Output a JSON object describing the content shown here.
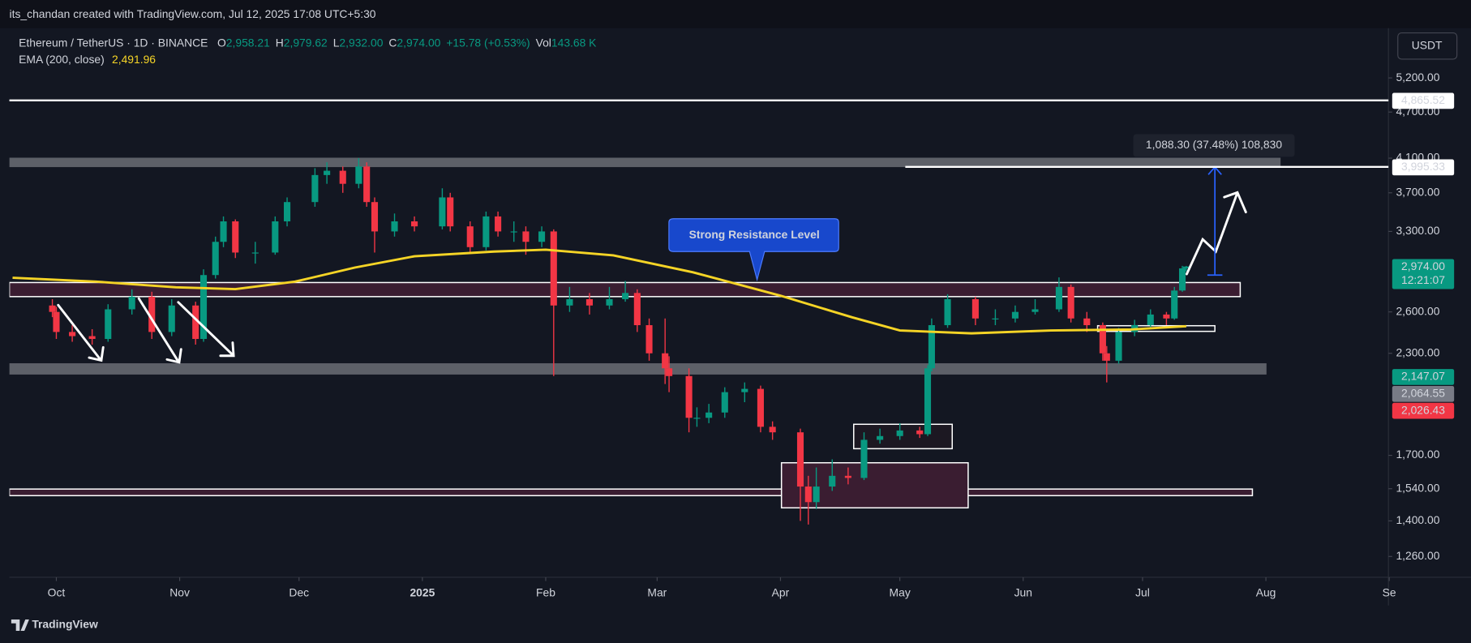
{
  "header": {
    "credit": "its_chandan created with TradingView.com, Jul 12, 2025 17:08 UTC+5:30",
    "symbol": "Ethereum / TetherUS · 1D · BINANCE",
    "ohlc": [
      {
        "key": "O",
        "value": "2,958.21"
      },
      {
        "key": "H",
        "value": "2,979.62"
      },
      {
        "key": "L",
        "value": "2,932.00"
      },
      {
        "key": "C",
        "value": "2,974.00"
      }
    ],
    "change": "+15.78 (+0.53%)",
    "volume_key": "Vol",
    "volume": "143.68 K",
    "ema_label": "EMA (200, close)",
    "ema_value": "2,491.96",
    "currency": "USDT"
  },
  "annotations": {
    "callout": "Strong Resistance Level",
    "measure": "1,088.30 (37.48%) 108,830"
  },
  "footer": {
    "brand": "TradingView"
  },
  "chart_data": {
    "type": "candlestick",
    "log_scale": true,
    "grid": false,
    "xlim": [
      -11.8,
      334.8
    ],
    "ylim": [
      1184.6,
      6026
    ],
    "xticks": [
      {
        "value": 0,
        "label": "Oct"
      },
      {
        "value": 31,
        "label": "Nov"
      },
      {
        "value": 61,
        "label": "Dec"
      },
      {
        "value": 92,
        "label": "2025"
      },
      {
        "value": 123,
        "label": "Feb"
      },
      {
        "value": 151,
        "label": "Mar"
      },
      {
        "value": 182,
        "label": "Apr"
      },
      {
        "value": 212,
        "label": "May"
      },
      {
        "value": 243,
        "label": "Jun"
      },
      {
        "value": 273,
        "label": "Jul"
      },
      {
        "value": 304,
        "label": "Aug"
      },
      {
        "value": 335,
        "label": "Se"
      }
    ],
    "yticks": [
      {
        "value": 1260,
        "label": "1,260.00"
      },
      {
        "value": 1400,
        "label": "1,400.00"
      },
      {
        "value": 1540,
        "label": "1,540.00"
      },
      {
        "value": 1700,
        "label": "1,700.00"
      },
      {
        "value": 2300,
        "label": "2,300.00"
      },
      {
        "value": 2600,
        "label": "2,600.00"
      },
      {
        "value": 3300,
        "label": "3,300.00"
      },
      {
        "value": 3700,
        "label": "3,700.00"
      },
      {
        "value": 4100,
        "label": "4,100.00"
      },
      {
        "value": 4700,
        "label": "4,700.00"
      },
      {
        "value": 5200,
        "label": "5,200.00"
      }
    ],
    "up_color": "#089981",
    "down_color": "#f23645",
    "candles": {
      "x": [
        -1,
        0,
        4,
        9,
        13,
        19,
        24,
        29,
        35,
        37,
        40,
        42,
        45,
        50,
        55,
        58,
        65,
        68,
        72,
        76,
        78,
        80,
        85,
        90,
        97,
        99,
        104,
        108,
        111,
        115,
        118,
        122,
        125,
        129,
        134,
        139,
        143,
        146,
        149,
        153,
        154,
        159,
        161,
        164,
        168,
        173,
        177,
        180,
        187,
        189,
        191,
        195,
        199,
        203,
        207,
        212,
        217,
        219,
        220,
        224,
        231,
        236,
        241,
        246,
        252,
        255,
        259,
        263,
        264,
        267,
        271,
        275,
        279,
        281,
        283,
        284
      ],
      "open": [
        2650,
        2600,
        2450,
        2420,
        2400,
        2620,
        2720,
        2450,
        2650,
        2400,
        2900,
        3200,
        3400,
        3100,
        3100,
        3400,
        3600,
        3900,
        3950,
        3800,
        4000,
        3600,
        3300,
        3400,
        3350,
        3650,
        3350,
        3150,
        3450,
        3300,
        3300,
        3200,
        3300,
        2650,
        2700,
        2650,
        2700,
        2750,
        2500,
        2300,
        2200,
        2150,
        1900,
        1900,
        1930,
        2050,
        2070,
        1850,
        1820,
        1550,
        1480,
        1550,
        1600,
        1590,
        1780,
        1800,
        1830,
        1810,
        2200,
        2500,
        2700,
        2550,
        2550,
        2600,
        2620,
        2800,
        2550,
        2500,
        2300,
        2250,
        2450,
        2500,
        2580,
        2550,
        2770,
        2958.21
      ],
      "high": [
        2700,
        2640,
        2500,
        2470,
        2660,
        2780,
        2760,
        2700,
        2680,
        2950,
        3250,
        3450,
        3420,
        3200,
        3450,
        3650,
        3980,
        4050,
        4000,
        4100,
        4050,
        3650,
        3480,
        3450,
        3750,
        3700,
        3400,
        3500,
        3500,
        3400,
        3350,
        3350,
        3320,
        2800,
        2750,
        2800,
        2850,
        2780,
        2550,
        2550,
        2280,
        2200,
        1960,
        1980,
        2080,
        2110,
        2090,
        1880,
        1840,
        1600,
        1640,
        1680,
        1640,
        1820,
        1840,
        1870,
        1850,
        2220,
        2550,
        2740,
        2720,
        2620,
        2650,
        2700,
        2880,
        2820,
        2600,
        2520,
        2350,
        2480,
        2540,
        2620,
        2600,
        2800,
        2980,
        2979.62
      ],
      "low": [
        2560,
        2400,
        2380,
        2360,
        2380,
        2580,
        2400,
        2420,
        2360,
        2380,
        2870,
        3150,
        3050,
        3000,
        3080,
        3350,
        3550,
        3800,
        3700,
        3750,
        3550,
        3100,
        3250,
        3300,
        3320,
        3300,
        3100,
        3120,
        3250,
        3200,
        3080,
        3150,
        2150,
        2600,
        2580,
        2620,
        2680,
        2450,
        2250,
        2100,
        2050,
        1820,
        1850,
        1870,
        1900,
        1990,
        1820,
        1780,
        1400,
        1385,
        1450,
        1530,
        1560,
        1580,
        1760,
        1780,
        1790,
        1800,
        2180,
        2480,
        2500,
        2500,
        2520,
        2580,
        2600,
        2520,
        2450,
        2250,
        2110,
        2230,
        2420,
        2480,
        2500,
        2540,
        2760,
        2932
      ],
      "close": [
        2600,
        2450,
        2420,
        2400,
        2620,
        2720,
        2450,
        2650,
        2400,
        2900,
        3200,
        3400,
        3100,
        3100,
        3400,
        3600,
        3900,
        3950,
        3800,
        4000,
        3600,
        3300,
        3400,
        3350,
        3650,
        3350,
        3150,
        3450,
        3300,
        3300,
        3200,
        3300,
        2650,
        2700,
        2650,
        2700,
        2750,
        2500,
        2300,
        2200,
        2150,
        1900,
        1900,
        1930,
        2050,
        2070,
        1850,
        1820,
        1550,
        1480,
        1550,
        1600,
        1590,
        1780,
        1800,
        1830,
        1810,
        2200,
        2500,
        2700,
        2550,
        2550,
        2600,
        2620,
        2800,
        2550,
        2500,
        2300,
        2250,
        2450,
        2500,
        2580,
        2550,
        2770,
        2958.21,
        2974
      ]
    },
    "series": [
      {
        "name": "EMA (200, close)",
        "color": "#f5d426",
        "x": [
          -11,
          10,
          30,
          45,
          60,
          75,
          90,
          110,
          123,
          140,
          160,
          182,
          200,
          212,
          230,
          250,
          270,
          284
        ],
        "values": [
          2877,
          2844,
          2797,
          2782,
          2844,
          2965,
          3066,
          3109,
          3126,
          3074,
          2924,
          2728,
          2559,
          2461,
          2440,
          2461,
          2468,
          2492
        ]
      }
    ],
    "price_labels": [
      {
        "value": 4865.52,
        "label": "4,865.52",
        "color": "#ffffff"
      },
      {
        "value": 3995.33,
        "label": "3,995.33",
        "color": "#ffffff"
      },
      {
        "value": 2974,
        "label": "2,974.00",
        "color": "#089981"
      },
      {
        "value": 2147.07,
        "label": "2,147.07",
        "color": "#089981"
      },
      {
        "value": 2064.55,
        "label": "2,064.55",
        "color": "#787b86"
      },
      {
        "value": 2026.43,
        "label": "2,026.43",
        "color": "#f23645"
      }
    ],
    "countdown": "12:21:07"
  }
}
